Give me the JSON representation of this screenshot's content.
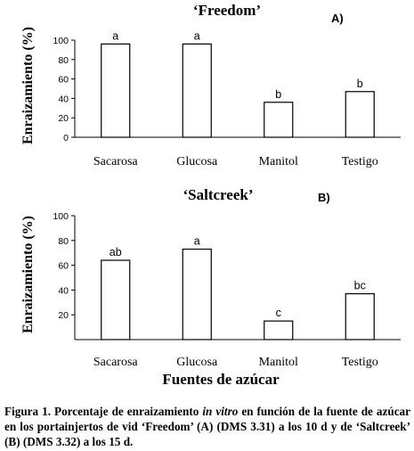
{
  "chart_data": [
    {
      "type": "bar",
      "title": "‘Freedom’",
      "panel": "A)",
      "ylabel": "Enraizamiento (%)",
      "ylim": [
        0,
        100
      ],
      "yticks": [
        0,
        20,
        40,
        60,
        80,
        100
      ],
      "categories": [
        "Sacarosa",
        "Glucosa",
        "Manitol",
        "Testigo"
      ],
      "values": [
        96,
        96,
        36,
        47
      ],
      "labels": [
        "a",
        "a",
        "b",
        "b"
      ],
      "grid": false,
      "bar_color": "#ffffff"
    },
    {
      "type": "bar",
      "title": "‘Saltcreek’",
      "panel": "B)",
      "ylabel": "Enraizamiento (%)",
      "ylim": [
        0,
        100
      ],
      "yticks": [
        20,
        40,
        60,
        80,
        100
      ],
      "categories": [
        "Sacarosa",
        "Glucosa",
        "Manitol",
        "Testigo"
      ],
      "values": [
        64,
        73,
        15,
        37
      ],
      "labels": [
        "ab",
        "a",
        "c",
        "bc"
      ],
      "xlabel": "Fuentes de azúcar",
      "grid": false,
      "bar_color": "#ffffff"
    }
  ],
  "caption": {
    "before": "Figura 1. Porcentaje de enraizamiento ",
    "italic": "in vitro",
    "after": " en función de la fuente de azúcar en los portainjertos de vid ‘Freedom’ (A) (DMS 3.31) a los 10 d y de ‘Saltcreek’ (B) (DMS 3.32) a los 15 d."
  }
}
